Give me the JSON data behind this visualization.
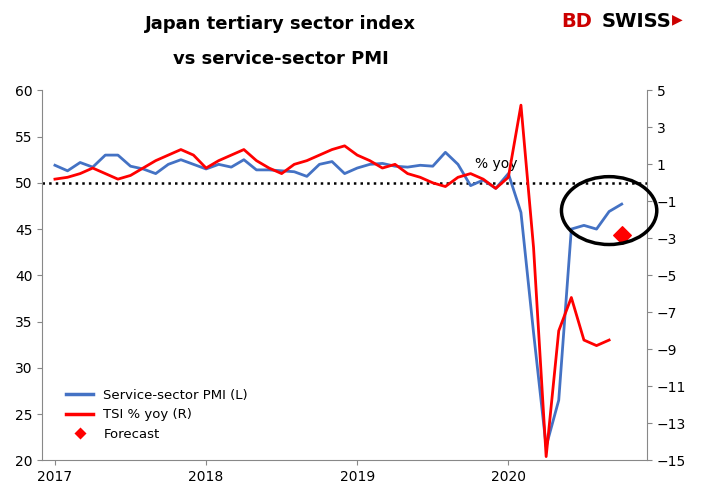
{
  "title_line1": "Japan tertiary sector index",
  "title_line2": "vs service-sector PMI",
  "ylabel_right": "% yoy",
  "ylim_left": [
    20,
    60
  ],
  "ylim_right": [
    -15,
    5
  ],
  "background_color": "#ffffff",
  "pmi_color": "#4472C4",
  "tsi_color": "#FF0000",
  "forecast_color": "#FF0000",
  "circle_color": "#000000",
  "pmi_dates_num": [
    0,
    1,
    2,
    3,
    4,
    5,
    6,
    7,
    8,
    9,
    10,
    11,
    12,
    13,
    14,
    15,
    16,
    17,
    18,
    19,
    20,
    21,
    22,
    23,
    24,
    25,
    26,
    27,
    28,
    29,
    30,
    31,
    32,
    33,
    34,
    35,
    36,
    37,
    38,
    39,
    40,
    41,
    42,
    43,
    44,
    45
  ],
  "pmi_values": [
    51.9,
    51.3,
    52.2,
    51.7,
    53.0,
    53.0,
    51.8,
    51.5,
    51.0,
    52.0,
    52.5,
    52.0,
    51.5,
    52.0,
    51.7,
    52.5,
    51.4,
    51.4,
    51.3,
    51.2,
    50.7,
    52.0,
    52.3,
    51.0,
    51.6,
    52.0,
    52.1,
    51.8,
    51.7,
    51.9,
    51.8,
    53.3,
    52.0,
    49.7,
    50.3,
    49.4,
    51.0,
    46.8,
    33.8,
    21.5,
    26.5,
    45.0,
    45.4,
    45.0,
    46.9,
    47.7
  ],
  "tsi_dates_num": [
    0,
    1,
    2,
    3,
    4,
    5,
    6,
    7,
    8,
    9,
    10,
    11,
    12,
    13,
    14,
    15,
    16,
    17,
    18,
    19,
    20,
    21,
    22,
    23,
    24,
    25,
    26,
    27,
    28,
    29,
    30,
    31,
    32,
    33,
    34,
    35,
    36,
    37,
    38,
    39,
    40,
    41,
    42,
    43,
    44
  ],
  "tsi_values": [
    0.2,
    0.3,
    0.5,
    0.8,
    0.5,
    0.2,
    0.4,
    0.8,
    1.2,
    1.5,
    1.8,
    1.5,
    0.8,
    1.2,
    1.5,
    1.8,
    1.2,
    0.8,
    0.5,
    1.0,
    1.2,
    1.5,
    1.8,
    2.0,
    1.5,
    1.2,
    0.8,
    1.0,
    0.5,
    0.3,
    0.0,
    -0.2,
    0.3,
    0.5,
    0.2,
    -0.3,
    0.3,
    4.2,
    -3.5,
    -14.8,
    -8.0,
    -6.2,
    -8.5,
    -8.8,
    -8.5
  ],
  "forecast_date_num": 45,
  "forecast_value": -2.8,
  "xtick_positions": [
    0,
    12,
    24,
    36
  ],
  "xtick_labels": [
    "2017",
    "2018",
    "2019",
    "2020"
  ],
  "left_yticks": [
    20,
    25,
    30,
    35,
    40,
    45,
    50,
    55,
    60
  ],
  "right_yticks": [
    -15,
    -13,
    -11,
    -9,
    -7,
    -5,
    -3,
    -1,
    1,
    3,
    5
  ],
  "xlim": [
    -1,
    47
  ],
  "bd_color": "#CC0000",
  "swiss_color": "#000000",
  "arrow_color": "#CC0000"
}
